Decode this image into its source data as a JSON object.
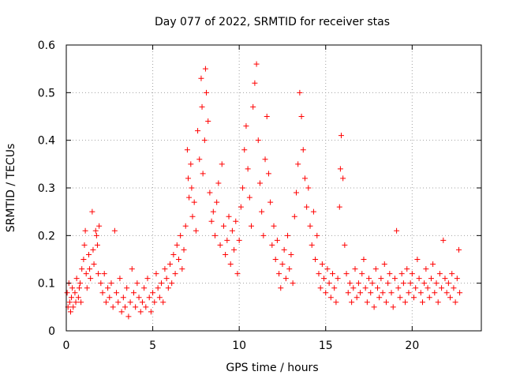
{
  "chart_data": {
    "type": "scatter",
    "title": "Day 077 of 2022, SRMTID for receiver stas",
    "xlabel": "GPS time / hours",
    "ylabel": "SRMTID / TECUs",
    "xlim": [
      0,
      24
    ],
    "ylim": [
      0,
      0.6
    ],
    "xticks": [
      0,
      5,
      10,
      15,
      20
    ],
    "yticks": [
      0,
      0.1,
      0.2,
      0.3,
      0.4,
      0.5,
      0.6
    ],
    "xtick_labels": [
      "0",
      "5",
      "10",
      "15",
      "20"
    ],
    "ytick_labels": [
      "0",
      "0.1",
      "0.2",
      "0.3",
      "0.4",
      "0.5",
      "0.6"
    ],
    "grid": true,
    "marker": "plus",
    "color": "#ff0000",
    "series": [
      {
        "name": "SRMTID",
        "points": [
          [
            0.05,
            0.08
          ],
          [
            0.1,
            0.05
          ],
          [
            0.15,
            0.1
          ],
          [
            0.2,
            0.06
          ],
          [
            0.25,
            0.04
          ],
          [
            0.3,
            0.07
          ],
          [
            0.35,
            0.09
          ],
          [
            0.4,
            0.05
          ],
          [
            0.5,
            0.08
          ],
          [
            0.55,
            0.06
          ],
          [
            0.6,
            0.11
          ],
          [
            0.7,
            0.07
          ],
          [
            0.75,
            0.09
          ],
          [
            0.8,
            0.1
          ],
          [
            0.85,
            0.06
          ],
          [
            0.9,
            0.13
          ],
          [
            1.0,
            0.15
          ],
          [
            1.05,
            0.18
          ],
          [
            1.1,
            0.21
          ],
          [
            1.15,
            0.12
          ],
          [
            1.2,
            0.09
          ],
          [
            1.3,
            0.16
          ],
          [
            1.35,
            0.13
          ],
          [
            1.4,
            0.11
          ],
          [
            1.5,
            0.25
          ],
          [
            1.55,
            0.17
          ],
          [
            1.6,
            0.14
          ],
          [
            1.7,
            0.21
          ],
          [
            1.75,
            0.2
          ],
          [
            1.8,
            0.18
          ],
          [
            1.85,
            0.12
          ],
          [
            1.9,
            0.22
          ],
          [
            2.0,
            0.1
          ],
          [
            2.1,
            0.08
          ],
          [
            2.2,
            0.12
          ],
          [
            2.3,
            0.06
          ],
          [
            2.4,
            0.09
          ],
          [
            2.5,
            0.07
          ],
          [
            2.6,
            0.1
          ],
          [
            2.7,
            0.05
          ],
          [
            2.8,
            0.21
          ],
          [
            2.9,
            0.08
          ],
          [
            3.0,
            0.06
          ],
          [
            3.1,
            0.11
          ],
          [
            3.2,
            0.04
          ],
          [
            3.3,
            0.07
          ],
          [
            3.4,
            0.05
          ],
          [
            3.5,
            0.09
          ],
          [
            3.6,
            0.03
          ],
          [
            3.7,
            0.06
          ],
          [
            3.8,
            0.13
          ],
          [
            3.9,
            0.08
          ],
          [
            4.0,
            0.05
          ],
          [
            4.1,
            0.1
          ],
          [
            4.2,
            0.07
          ],
          [
            4.3,
            0.04
          ],
          [
            4.4,
            0.06
          ],
          [
            4.5,
            0.09
          ],
          [
            4.6,
            0.05
          ],
          [
            4.7,
            0.11
          ],
          [
            4.8,
            0.07
          ],
          [
            4.9,
            0.04
          ],
          [
            5.0,
            0.08
          ],
          [
            5.1,
            0.06
          ],
          [
            5.2,
            0.12
          ],
          [
            5.3,
            0.09
          ],
          [
            5.4,
            0.07
          ],
          [
            5.5,
            0.1
          ],
          [
            5.6,
            0.06
          ],
          [
            5.7,
            0.13
          ],
          [
            5.8,
            0.11
          ],
          [
            5.9,
            0.09
          ],
          [
            6.0,
            0.14
          ],
          [
            6.1,
            0.1
          ],
          [
            6.2,
            0.16
          ],
          [
            6.3,
            0.12
          ],
          [
            6.4,
            0.18
          ],
          [
            6.5,
            0.15
          ],
          [
            6.6,
            0.2
          ],
          [
            6.7,
            0.13
          ],
          [
            6.8,
            0.17
          ],
          [
            6.9,
            0.22
          ],
          [
            7.0,
            0.38
          ],
          [
            7.05,
            0.32
          ],
          [
            7.1,
            0.28
          ],
          [
            7.2,
            0.35
          ],
          [
            7.25,
            0.3
          ],
          [
            7.3,
            0.24
          ],
          [
            7.4,
            0.27
          ],
          [
            7.5,
            0.21
          ],
          [
            7.6,
            0.42
          ],
          [
            7.7,
            0.36
          ],
          [
            7.8,
            0.53
          ],
          [
            7.85,
            0.47
          ],
          [
            7.9,
            0.33
          ],
          [
            8.0,
            0.4
          ],
          [
            8.05,
            0.55
          ],
          [
            8.1,
            0.5
          ],
          [
            8.2,
            0.44
          ],
          [
            8.3,
            0.29
          ],
          [
            8.4,
            0.23
          ],
          [
            8.5,
            0.25
          ],
          [
            8.6,
            0.2
          ],
          [
            8.7,
            0.27
          ],
          [
            8.8,
            0.31
          ],
          [
            8.9,
            0.18
          ],
          [
            9.0,
            0.35
          ],
          [
            9.1,
            0.22
          ],
          [
            9.2,
            0.16
          ],
          [
            9.3,
            0.19
          ],
          [
            9.4,
            0.24
          ],
          [
            9.5,
            0.14
          ],
          [
            9.6,
            0.21
          ],
          [
            9.7,
            0.17
          ],
          [
            9.8,
            0.23
          ],
          [
            9.9,
            0.12
          ],
          [
            10.0,
            0.19
          ],
          [
            10.1,
            0.26
          ],
          [
            10.2,
            0.3
          ],
          [
            10.3,
            0.38
          ],
          [
            10.4,
            0.43
          ],
          [
            10.5,
            0.34
          ],
          [
            10.6,
            0.28
          ],
          [
            10.7,
            0.22
          ],
          [
            10.8,
            0.47
          ],
          [
            10.9,
            0.52
          ],
          [
            11.0,
            0.56
          ],
          [
            11.1,
            0.4
          ],
          [
            11.2,
            0.31
          ],
          [
            11.3,
            0.25
          ],
          [
            11.4,
            0.2
          ],
          [
            11.5,
            0.36
          ],
          [
            11.6,
            0.45
          ],
          [
            11.7,
            0.33
          ],
          [
            11.8,
            0.27
          ],
          [
            11.9,
            0.18
          ],
          [
            12.0,
            0.22
          ],
          [
            12.1,
            0.15
          ],
          [
            12.2,
            0.19
          ],
          [
            12.3,
            0.12
          ],
          [
            12.4,
            0.09
          ],
          [
            12.5,
            0.14
          ],
          [
            12.6,
            0.17
          ],
          [
            12.7,
            0.11
          ],
          [
            12.8,
            0.2
          ],
          [
            12.9,
            0.13
          ],
          [
            13.0,
            0.16
          ],
          [
            13.1,
            0.1
          ],
          [
            13.2,
            0.24
          ],
          [
            13.3,
            0.29
          ],
          [
            13.4,
            0.35
          ],
          [
            13.5,
            0.5
          ],
          [
            13.6,
            0.45
          ],
          [
            13.7,
            0.38
          ],
          [
            13.8,
            0.32
          ],
          [
            13.9,
            0.26
          ],
          [
            14.0,
            0.3
          ],
          [
            14.1,
            0.22
          ],
          [
            14.2,
            0.18
          ],
          [
            14.3,
            0.25
          ],
          [
            14.4,
            0.15
          ],
          [
            14.5,
            0.2
          ],
          [
            14.6,
            0.12
          ],
          [
            14.7,
            0.09
          ],
          [
            14.8,
            0.14
          ],
          [
            14.9,
            0.11
          ],
          [
            15.0,
            0.08
          ],
          [
            15.1,
            0.13
          ],
          [
            15.2,
            0.1
          ],
          [
            15.3,
            0.07
          ],
          [
            15.4,
            0.12
          ],
          [
            15.5,
            0.09
          ],
          [
            15.6,
            0.06
          ],
          [
            15.7,
            0.11
          ],
          [
            15.8,
            0.26
          ],
          [
            15.85,
            0.34
          ],
          [
            15.9,
            0.41
          ],
          [
            16.0,
            0.32
          ],
          [
            16.1,
            0.18
          ],
          [
            16.2,
            0.12
          ],
          [
            16.3,
            0.08
          ],
          [
            16.4,
            0.1
          ],
          [
            16.5,
            0.06
          ],
          [
            16.6,
            0.09
          ],
          [
            16.7,
            0.13
          ],
          [
            16.8,
            0.07
          ],
          [
            16.9,
            0.1
          ],
          [
            17.0,
            0.08
          ],
          [
            17.1,
            0.12
          ],
          [
            17.2,
            0.15
          ],
          [
            17.3,
            0.09
          ],
          [
            17.4,
            0.06
          ],
          [
            17.5,
            0.11
          ],
          [
            17.6,
            0.08
          ],
          [
            17.7,
            0.1
          ],
          [
            17.8,
            0.05
          ],
          [
            17.9,
            0.13
          ],
          [
            18.0,
            0.09
          ],
          [
            18.1,
            0.07
          ],
          [
            18.2,
            0.11
          ],
          [
            18.3,
            0.08
          ],
          [
            18.4,
            0.14
          ],
          [
            18.5,
            0.06
          ],
          [
            18.6,
            0.1
          ],
          [
            18.7,
            0.12
          ],
          [
            18.8,
            0.08
          ],
          [
            18.9,
            0.05
          ],
          [
            19.0,
            0.11
          ],
          [
            19.1,
            0.21
          ],
          [
            19.2,
            0.09
          ],
          [
            19.3,
            0.07
          ],
          [
            19.4,
            0.12
          ],
          [
            19.5,
            0.1
          ],
          [
            19.6,
            0.06
          ],
          [
            19.7,
            0.13
          ],
          [
            19.8,
            0.08
          ],
          [
            19.9,
            0.1
          ],
          [
            20.0,
            0.12
          ],
          [
            20.1,
            0.07
          ],
          [
            20.2,
            0.09
          ],
          [
            20.3,
            0.15
          ],
          [
            20.4,
            0.11
          ],
          [
            20.5,
            0.08
          ],
          [
            20.6,
            0.06
          ],
          [
            20.7,
            0.1
          ],
          [
            20.8,
            0.13
          ],
          [
            20.9,
            0.09
          ],
          [
            21.0,
            0.07
          ],
          [
            21.1,
            0.11
          ],
          [
            21.2,
            0.14
          ],
          [
            21.3,
            0.08
          ],
          [
            21.4,
            0.1
          ],
          [
            21.5,
            0.06
          ],
          [
            21.6,
            0.12
          ],
          [
            21.7,
            0.09
          ],
          [
            21.8,
            0.19
          ],
          [
            21.9,
            0.11
          ],
          [
            22.0,
            0.08
          ],
          [
            22.1,
            0.1
          ],
          [
            22.2,
            0.07
          ],
          [
            22.3,
            0.12
          ],
          [
            22.4,
            0.09
          ],
          [
            22.5,
            0.06
          ],
          [
            22.6,
            0.11
          ],
          [
            22.7,
            0.17
          ],
          [
            22.75,
            0.08
          ]
        ]
      }
    ]
  }
}
